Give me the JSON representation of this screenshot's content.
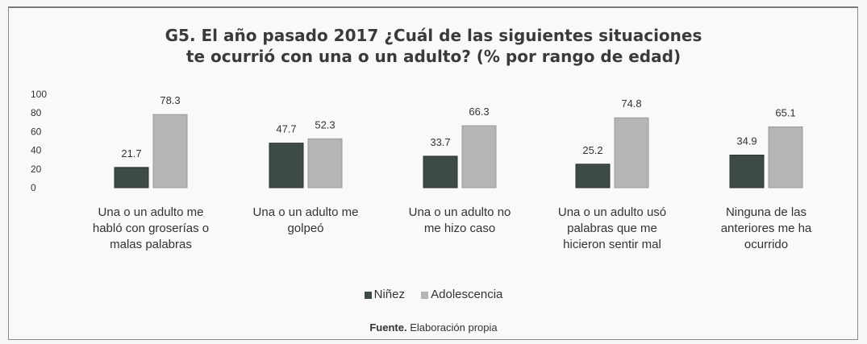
{
  "chart_data": {
    "type": "bar",
    "title_lines": [
      "G5. El año pasado 2017 ¿Cuál de las siguientes situaciones",
      "te ocurrió con una o un adulto? (% por rango de edad)"
    ],
    "categories": [
      [
        "Una o un adulto me",
        "habló con groserías o",
        "malas palabras"
      ],
      [
        "Una o un adulto me",
        "golpeó"
      ],
      [
        "Una o un adulto no",
        "me hizo caso"
      ],
      [
        "Una o un adulto usó",
        "palabras que me",
        "hicieron sentir mal"
      ],
      [
        "Ninguna de las",
        "anteriores me ha",
        "ocurrido"
      ]
    ],
    "series": [
      {
        "name": "Niñez",
        "color": "#3d4a47",
        "values": [
          21.7,
          47.7,
          33.7,
          25.2,
          34.9
        ]
      },
      {
        "name": "Adolescencia",
        "color": "#b5b5b5",
        "values": [
          78.3,
          52.3,
          66.3,
          74.8,
          65.1
        ]
      }
    ],
    "yticks": [
      "0",
      "20",
      "40",
      "60",
      "80",
      "100"
    ],
    "ylim": [
      0,
      100
    ],
    "grid": false,
    "legend_position": "bottom"
  },
  "source": {
    "label": "Fuente.",
    "text": "Elaboración propia"
  }
}
